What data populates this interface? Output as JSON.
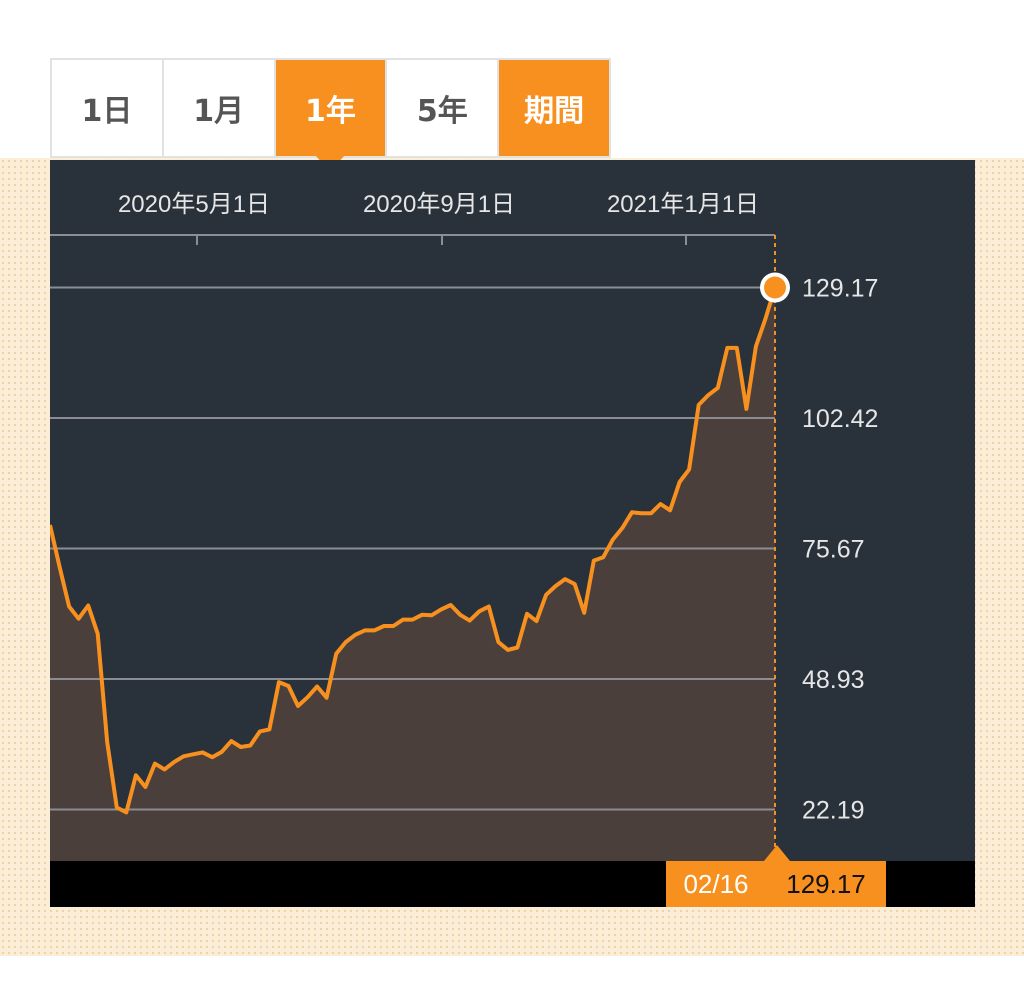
{
  "tabs": [
    {
      "label": "1日",
      "active": false
    },
    {
      "label": "1月",
      "active": false
    },
    {
      "label": "1年",
      "active": true
    },
    {
      "label": "5年",
      "active": false
    },
    {
      "label": "期間",
      "active": false
    }
  ],
  "colors": {
    "accent": "#f7901e",
    "panel": "#29313b",
    "area_fill": "#4a3f3a",
    "grid": "#8a8e94"
  },
  "readout": {
    "date": "02/16",
    "value": "129.17"
  },
  "chart_data": {
    "type": "area",
    "x_ticks": [
      "2020年5月1日",
      "2020年9月1日",
      "2021年1月1日"
    ],
    "y_ticks": [
      "22.19",
      "48.93",
      "75.67",
      "102.42",
      "129.17"
    ],
    "ylim": [
      11.5,
      139.5
    ],
    "grid": true,
    "series": [
      {
        "values": [
          80.5,
          72,
          63.8,
          61.3,
          64,
          58.2,
          36,
          22.6,
          21.6,
          29.2,
          26.8,
          31.6,
          30.4,
          31.9,
          33.1,
          33.5,
          33.9,
          32.9,
          34,
          36.2,
          35,
          35.3,
          38.2,
          38.6,
          48.3,
          47.5,
          43.4,
          45.2,
          47.4,
          45.1,
          54.1,
          56.5,
          58,
          58.9,
          58.9,
          59.8,
          59.8,
          61.1,
          61.1,
          62.1,
          62,
          63.2,
          64.1,
          62.1,
          60.9,
          62.8,
          63.8,
          56.5,
          54.9,
          55.4,
          62.3,
          60.8,
          66.2,
          68,
          69.4,
          68.4,
          62.5,
          73.2,
          73.9,
          77.5,
          79.9,
          83.1,
          82.9,
          82.9,
          84.8,
          83.5,
          89.3,
          91.9,
          105.1,
          107.1,
          108.6,
          116.8,
          116.8,
          104.3,
          117.1,
          122.8,
          129.17
        ]
      }
    ]
  }
}
